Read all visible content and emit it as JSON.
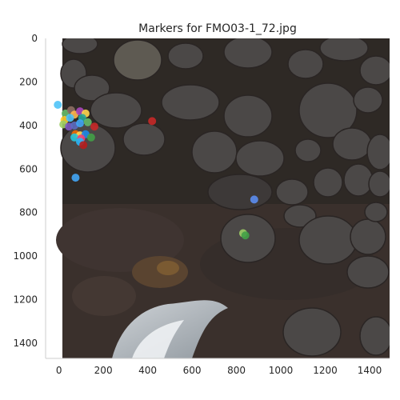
{
  "chart_data": {
    "type": "scatter",
    "title": "Markers for FMO03-1_72.jpg",
    "xlabel": "",
    "ylabel": "",
    "xlim": [
      -60,
      1490
    ],
    "ylim": [
      1470,
      0
    ],
    "x_ticks": [
      0,
      200,
      400,
      600,
      800,
      1000,
      1200,
      1400
    ],
    "y_ticks": [
      0,
      200,
      400,
      600,
      800,
      1000,
      1200,
      1400
    ],
    "grid": false,
    "legend": "none",
    "background": "aerial photograph of dark volcanic boulders, rocky tidal platform and breaking surf",
    "points": [
      {
        "x": -5,
        "y": 305,
        "color": "#4fc3f7"
      },
      {
        "x": 30,
        "y": 345,
        "color": "#66bb6a"
      },
      {
        "x": 55,
        "y": 330,
        "color": "#8d6e63"
      },
      {
        "x": 70,
        "y": 350,
        "color": "#ffb74d"
      },
      {
        "x": 95,
        "y": 335,
        "color": "#ab47bc"
      },
      {
        "x": 120,
        "y": 345,
        "color": "#ffd54f"
      },
      {
        "x": 105,
        "y": 365,
        "color": "#26a69a"
      },
      {
        "x": 25,
        "y": 375,
        "color": "#ffca28"
      },
      {
        "x": 50,
        "y": 365,
        "color": "#4fc3f7"
      },
      {
        "x": 20,
        "y": 395,
        "color": "#9ccc65"
      },
      {
        "x": 45,
        "y": 405,
        "color": "#7e57c2"
      },
      {
        "x": 70,
        "y": 400,
        "color": "#5c6bc0"
      },
      {
        "x": 95,
        "y": 390,
        "color": "#42a5f5"
      },
      {
        "x": 130,
        "y": 385,
        "color": "#66bb6a"
      },
      {
        "x": 160,
        "y": 405,
        "color": "#c62828"
      },
      {
        "x": 420,
        "y": 380,
        "color": "#c62828"
      },
      {
        "x": 75,
        "y": 440,
        "color": "#ef6c00"
      },
      {
        "x": 95,
        "y": 445,
        "color": "#ffd54f"
      },
      {
        "x": 120,
        "y": 440,
        "color": "#1e88e5"
      },
      {
        "x": 145,
        "y": 455,
        "color": "#43a047"
      },
      {
        "x": 70,
        "y": 455,
        "color": "#26c6da"
      },
      {
        "x": 100,
        "y": 460,
        "color": "#ec407a"
      },
      {
        "x": 95,
        "y": 475,
        "color": "#29b6f6"
      },
      {
        "x": 110,
        "y": 490,
        "color": "#b71c1c"
      },
      {
        "x": 75,
        "y": 640,
        "color": "#42a5f5"
      },
      {
        "x": 880,
        "y": 740,
        "color": "#5b8def"
      },
      {
        "x": 830,
        "y": 895,
        "color": "#9ccc65"
      },
      {
        "x": 840,
        "y": 905,
        "color": "#43a047"
      }
    ]
  }
}
